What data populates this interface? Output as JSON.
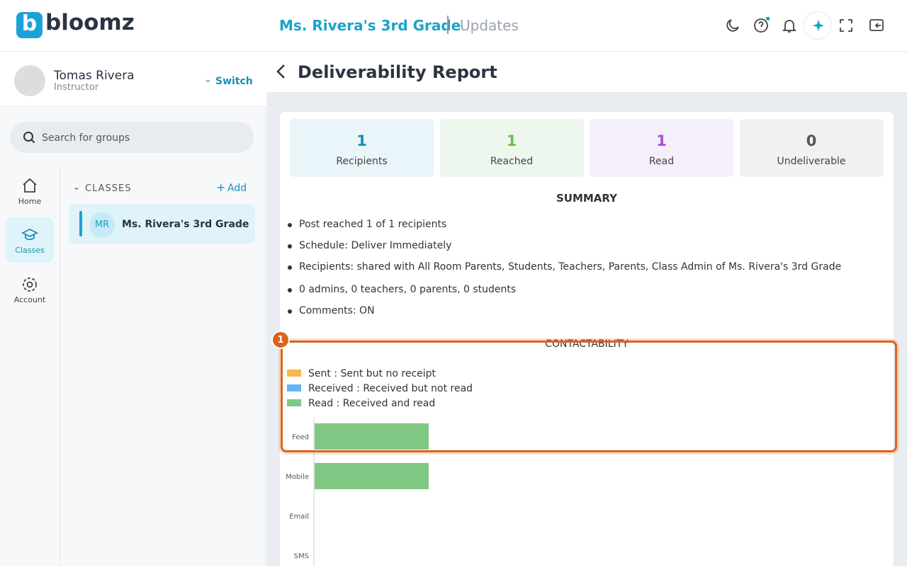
{
  "header": {
    "logo": "bloomz",
    "class_title": "Ms. Rivera's 3rd Grade",
    "section": "Updates"
  },
  "user": {
    "name": "Tomas Rivera",
    "role": "Instructor",
    "switch": "Switch"
  },
  "search": {
    "placeholder": "Search for groups"
  },
  "nav": [
    "Home",
    "Classes",
    "Account"
  ],
  "classes": {
    "heading": "CLASSES",
    "add": "Add",
    "groups": [
      {
        "initials": "MR",
        "name": "Ms. Rivera's 3rd Grade"
      }
    ]
  },
  "report": {
    "title": "Deliverability Report",
    "stats": [
      {
        "value": 1,
        "label": "Recipients"
      },
      {
        "value": 1,
        "label": "Reached"
      },
      {
        "value": 1,
        "label": "Read"
      },
      {
        "value": 0,
        "label": "Undeliverable"
      }
    ],
    "summary_title": "SUMMARY",
    "summary": [
      "Post reached 1 of 1 recipients",
      "Schedule: Deliver Immediately",
      "Recipients: shared with All Room Parents, Students, Teachers, Parents, Class Admin of Ms. Rivera's 3rd Grade",
      "0 admins, 0 teachers, 0 parents, 0 students",
      "Comments: ON"
    ],
    "annotation": "1"
  },
  "chart_data": {
    "type": "stacked-barh",
    "title": "CONTACTABILITY",
    "categories": [
      "Feed",
      "Mobile",
      "Email",
      "SMS"
    ],
    "series": [
      {
        "name": "Sent : Sent but no receipt",
        "color": "#f8b84e",
        "values": [
          0,
          0,
          0,
          0
        ]
      },
      {
        "name": "Received : Received but not read",
        "color": "#64b5f6",
        "values": [
          0,
          0,
          0,
          0
        ]
      },
      {
        "name": "Read : Received and read",
        "color": "#81c784",
        "values": [
          1,
          1,
          0,
          0
        ]
      }
    ]
  }
}
